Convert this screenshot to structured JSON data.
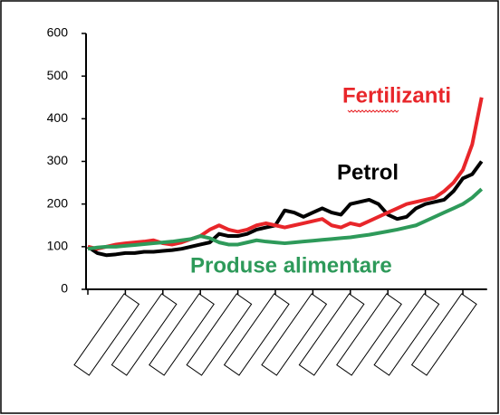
{
  "chart_data": {
    "type": "line",
    "categories": [
      null,
      null,
      null,
      null,
      null,
      null,
      null,
      null,
      null,
      null,
      null,
      null,
      null,
      null,
      null,
      null,
      null,
      null,
      null,
      null,
      null,
      null,
      null,
      null,
      null,
      null,
      null,
      null,
      null,
      null,
      null,
      null,
      null,
      null,
      null,
      null,
      null,
      null,
      null,
      null,
      null,
      null,
      null
    ],
    "series": [
      {
        "name": "Petrol",
        "color": "#000000",
        "values": [
          100,
          85,
          80,
          82,
          85,
          85,
          88,
          88,
          90,
          92,
          95,
          100,
          105,
          110,
          130,
          125,
          125,
          130,
          140,
          145,
          150,
          185,
          180,
          170,
          180,
          190,
          180,
          175,
          200,
          205,
          210,
          200,
          175,
          165,
          170,
          190,
          200,
          205,
          210,
          230,
          260,
          270,
          300
        ]
      },
      {
        "name": "Fertilizanti",
        "color": "#e8262a",
        "values": [
          100,
          95,
          100,
          105,
          108,
          110,
          112,
          115,
          108,
          105,
          110,
          118,
          125,
          140,
          150,
          140,
          135,
          140,
          150,
          155,
          150,
          145,
          150,
          155,
          160,
          165,
          150,
          145,
          155,
          150,
          160,
          170,
          180,
          190,
          200,
          205,
          210,
          215,
          230,
          250,
          280,
          340,
          450
        ]
      },
      {
        "name": "Produse alimentare",
        "color": "#2e9a5a",
        "values": [
          95,
          98,
          100,
          100,
          102,
          104,
          106,
          108,
          110,
          112,
          115,
          118,
          125,
          120,
          110,
          105,
          105,
          110,
          115,
          112,
          110,
          108,
          110,
          112,
          114,
          116,
          118,
          120,
          122,
          125,
          128,
          132,
          136,
          140,
          145,
          150,
          160,
          170,
          180,
          190,
          200,
          215,
          235
        ]
      }
    ],
    "ylim": [
      0,
      600
    ],
    "yticks": [
      0,
      100,
      200,
      300,
      400,
      500,
      600
    ],
    "legend": "inline"
  }
}
